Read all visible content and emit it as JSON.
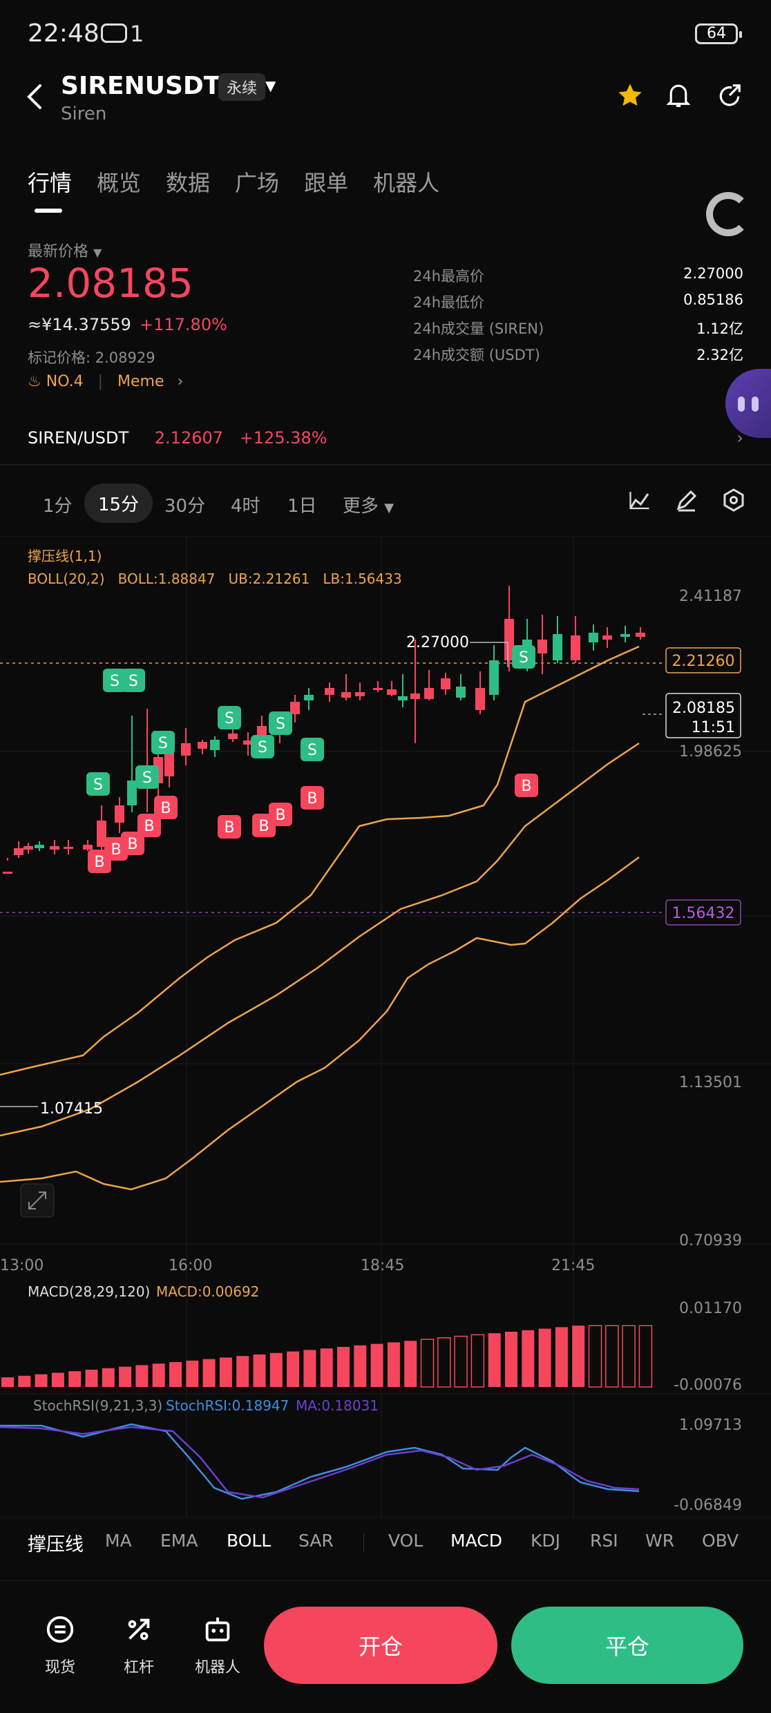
{
  "status_bar": {
    "time": "22:48",
    "notification_count": "1",
    "battery": "64"
  },
  "header": {
    "pair": "SIRENUSDT",
    "badge": "永续",
    "subtitle": "Siren"
  },
  "tabs": [
    {
      "label": "行情"
    },
    {
      "label": "概览"
    },
    {
      "label": "数据"
    },
    {
      "label": "广场"
    },
    {
      "label": "跟单"
    },
    {
      "label": "机器人"
    }
  ],
  "price": {
    "label": "最新价格",
    "last": "2.08185",
    "cny": "≈¥14.37559",
    "change_pct": "+117.80%",
    "mark": "标记价格: 2.08929",
    "rank": "NO.4",
    "tag": "Meme"
  },
  "stats": [
    {
      "label": "24h最高价",
      "value": "2.27000"
    },
    {
      "label": "24h最低价",
      "value": "0.85186"
    },
    {
      "label": "24h成交量 (SIREN)",
      "value": "1.12亿"
    },
    {
      "label": "24h成交额 (USDT)",
      "value": "2.32亿"
    }
  ],
  "spot": {
    "pair": "SIREN/USDT",
    "price": "2.12607",
    "change": "+125.38%"
  },
  "intervals": [
    {
      "label": "1分"
    },
    {
      "label": "15分"
    },
    {
      "label": "30分"
    },
    {
      "label": "4时"
    },
    {
      "label": "1日"
    },
    {
      "label": "更多"
    }
  ],
  "chart": {
    "indicator_line1": "撑压线(1,1)",
    "indicator_line2": "BOLL(20,2)   BOLL:1.88847   UB:2.21261   LB:1.56433",
    "y_ticks": [
      "2.41187",
      "1.98625",
      "1.13501",
      "0.70939"
    ],
    "x_ticks": [
      "13:00",
      "16:00",
      "18:45",
      "21:45"
    ],
    "high_label": "2.27000",
    "low_label": "1.07415",
    "resistance_tag": "2.21260",
    "support_tag": "1.56432",
    "current_tag": "2.08185",
    "countdown": "11:51",
    "macd_label": "MACD(28,29,120)",
    "macd_value": "MACD:0.00692",
    "macd_ticks": [
      "0.01170",
      "-0.00076"
    ],
    "stoch_label": "StochRSI(9,21,3,3)",
    "stoch_value": "StochRSI:0.18947",
    "stoch_ma": "MA:0.18031",
    "stoch_ticks": [
      "1.09713",
      "-0.06849"
    ],
    "colors": {
      "up": "#2ebd85",
      "down": "#f6465d",
      "boll": "#f0a44b"
    }
  },
  "indicators_main": [
    {
      "label": "撑压线"
    },
    {
      "label": "MA"
    },
    {
      "label": "EMA"
    },
    {
      "label": "BOLL"
    },
    {
      "label": "SAR"
    }
  ],
  "indicators_sub": [
    {
      "label": "VOL"
    },
    {
      "label": "MACD"
    },
    {
      "label": "KDJ"
    },
    {
      "label": "RSI"
    },
    {
      "label": "WR"
    },
    {
      "label": "OBV"
    }
  ],
  "actions": {
    "spot_label": "现货",
    "leverage_label": "杠杆",
    "bot_label": "机器人",
    "open_label": "开仓",
    "close_label": "平仓"
  }
}
